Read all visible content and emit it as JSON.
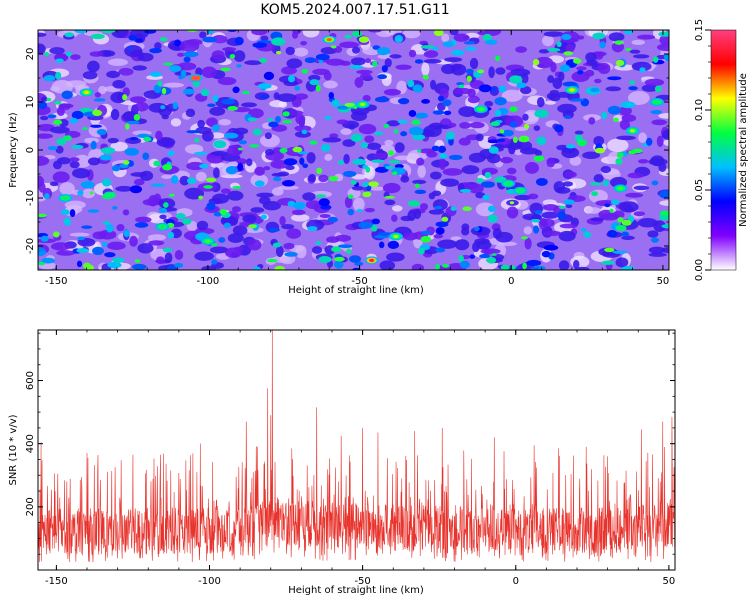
{
  "title": "KOM5.2024.007.17.51.G11",
  "chart_data": [
    {
      "type": "heatmap",
      "xlabel": "Height of straight line (km)",
      "ylabel": "Frequency (Hz)",
      "xlim": [
        -156,
        52
      ],
      "ylim": [
        -25,
        25
      ],
      "xticks": [
        -150,
        -100,
        -50,
        0,
        50
      ],
      "yticks": [
        -20,
        -10,
        0,
        10,
        20
      ],
      "xtick_labels": [
        "-150",
        "-100",
        "-50",
        "0",
        "50"
      ],
      "ytick_labels": [
        "-20",
        "-10",
        "0",
        "10",
        "20"
      ],
      "value_range": [
        0,
        0.15
      ],
      "colorbar": {
        "label": "Normalized spectral amplitude",
        "ticks": [
          0.0,
          0.05,
          0.1,
          0.15
        ],
        "tick_labels": [
          "0.00",
          "0.05",
          "0.10",
          "0.15"
        ],
        "colors": [
          "#ffffff",
          "#8000ff",
          "#0000ff",
          "#00c0ff",
          "#00ff40",
          "#ffff00",
          "#ff0000",
          "#ff4080"
        ]
      },
      "hotspots": [
        {
          "x": -104,
          "y": 15,
          "value": 0.15
        },
        {
          "x": -46,
          "y": -23,
          "value": 0.14
        },
        {
          "x": -60,
          "y": 23,
          "value": 0.12
        },
        {
          "x": 20,
          "y": 12.5,
          "value": 0.11
        },
        {
          "x": -140,
          "y": 12,
          "value": 0.11
        },
        {
          "x": 40,
          "y": 4,
          "value": 0.1
        },
        {
          "x": -49,
          "y": 9.5,
          "value": 0.1
        },
        {
          "x": -38,
          "y": -18,
          "value": 0.1
        },
        {
          "x": -100,
          "y": -19,
          "value": 0.09
        },
        {
          "x": 36,
          "y": -8,
          "value": 0.09
        },
        {
          "x": -10,
          "y": 8.5,
          "value": 0.09
        },
        {
          "x": -1,
          "y": -7,
          "value": 0.08
        },
        {
          "x": -147,
          "y": -10,
          "value": 0.08
        },
        {
          "x": 48,
          "y": 10,
          "value": 0.08
        },
        {
          "x": 3,
          "y": -8.5,
          "value": 0.08
        },
        {
          "x": -115,
          "y": -16,
          "value": 0.08
        }
      ],
      "grid": false
    },
    {
      "type": "line",
      "xlabel": "Height of straight line (km)",
      "ylabel": "SNR (10 * v/v)",
      "xlim": [
        -156,
        52
      ],
      "ylim": [
        0,
        760
      ],
      "xticks": [
        -150,
        -100,
        -50,
        0,
        50
      ],
      "yticks": [
        200,
        400,
        600
      ],
      "xtick_labels": [
        "-150",
        "-100",
        "-50",
        "0",
        "50"
      ],
      "ytick_labels": [
        "200",
        "400",
        "600"
      ],
      "color": "#e8332d",
      "baseline": [
        [
          -156,
          115
        ],
        [
          -100,
          120
        ],
        [
          -85,
          135
        ],
        [
          -78,
          150
        ],
        [
          -60,
          135
        ],
        [
          0,
          115
        ],
        [
          30,
          118
        ],
        [
          52,
          140
        ]
      ],
      "peaks": [
        {
          "x": -79.5,
          "y": 760
        },
        {
          "x": -81,
          "y": 575
        },
        {
          "x": -80,
          "y": 490
        },
        {
          "x": -65,
          "y": 515
        },
        {
          "x": -88,
          "y": 470
        },
        {
          "x": -103,
          "y": 400
        },
        {
          "x": 51,
          "y": 485
        },
        {
          "x": 48,
          "y": 470
        },
        {
          "x": -50,
          "y": 450
        },
        {
          "x": -24,
          "y": 450
        },
        {
          "x": -45,
          "y": 435
        },
        {
          "x": -57,
          "y": 425
        },
        {
          "x": -7,
          "y": 420
        },
        {
          "x": -33,
          "y": 440
        },
        {
          "x": -155,
          "y": 405
        },
        {
          "x": 6,
          "y": 395
        },
        {
          "x": 14,
          "y": 385
        },
        {
          "x": 23,
          "y": 390
        },
        {
          "x": 41,
          "y": 445
        },
        {
          "x": -140,
          "y": 370
        },
        {
          "x": -125,
          "y": 365
        },
        {
          "x": -116,
          "y": 365
        },
        {
          "x": 30,
          "y": 360
        }
      ],
      "grid": false
    }
  ]
}
